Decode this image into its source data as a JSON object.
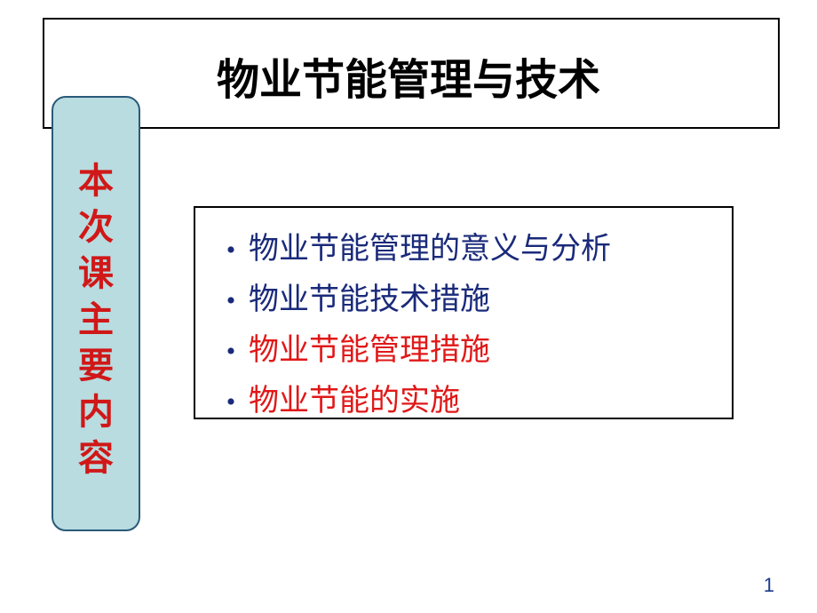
{
  "slide": {
    "title": "物业节能管理与技术",
    "sidebar_label_chars": [
      "本",
      "次",
      "课",
      "主",
      "要",
      "内",
      "容"
    ],
    "sidebar_color": "#d01818",
    "sidebar_bg": "#b8dce0",
    "sidebar_border": "#2a5a7a",
    "items": [
      {
        "text": "物业节能管理的意义与分析",
        "color": "#1a2a7a"
      },
      {
        "text": "物业节能技术措施",
        "color": "#1a2a7a"
      },
      {
        "text": "物业节能管理措施",
        "color": "#e01818"
      },
      {
        "text": "物业节能的实施",
        "color": "#e01818"
      }
    ],
    "bullet_color": "#1a2a7a",
    "page_number": "1",
    "page_number_color": "#1a3a8a"
  }
}
